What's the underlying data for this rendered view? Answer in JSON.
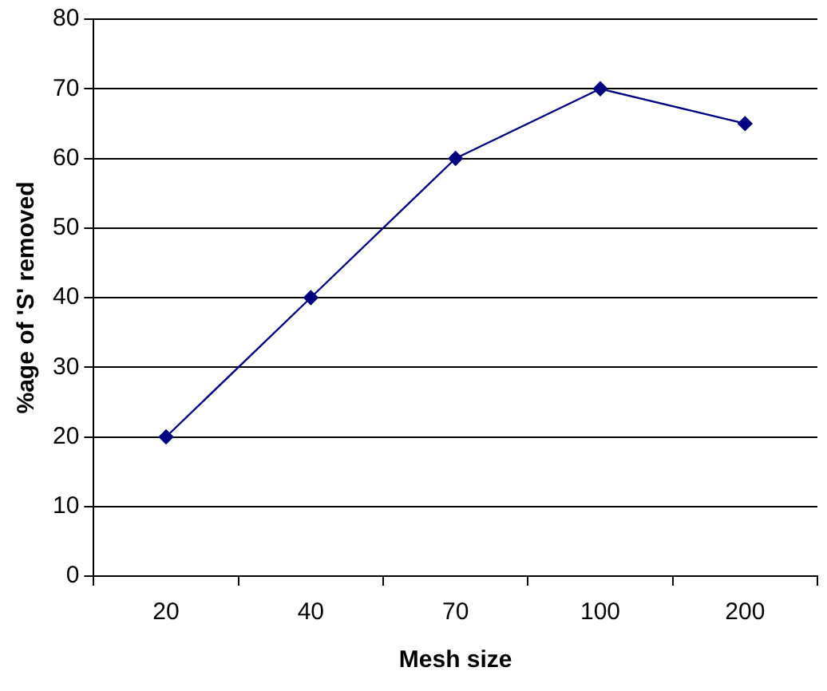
{
  "chart_data": {
    "type": "line",
    "xlabel": "Mesh size",
    "ylabel": "%age of 'S' removed",
    "categories": [
      "20",
      "40",
      "70",
      "100",
      "200"
    ],
    "series": [
      {
        "color": "#000080",
        "values": [
          20,
          40,
          60,
          70,
          65
        ]
      }
    ],
    "ylim": [
      0,
      80
    ],
    "yticks": [
      0,
      10,
      20,
      30,
      40,
      50,
      60,
      70,
      80
    ],
    "grid": "y",
    "legend": false,
    "marker": "diamond",
    "line_style": "solid"
  }
}
